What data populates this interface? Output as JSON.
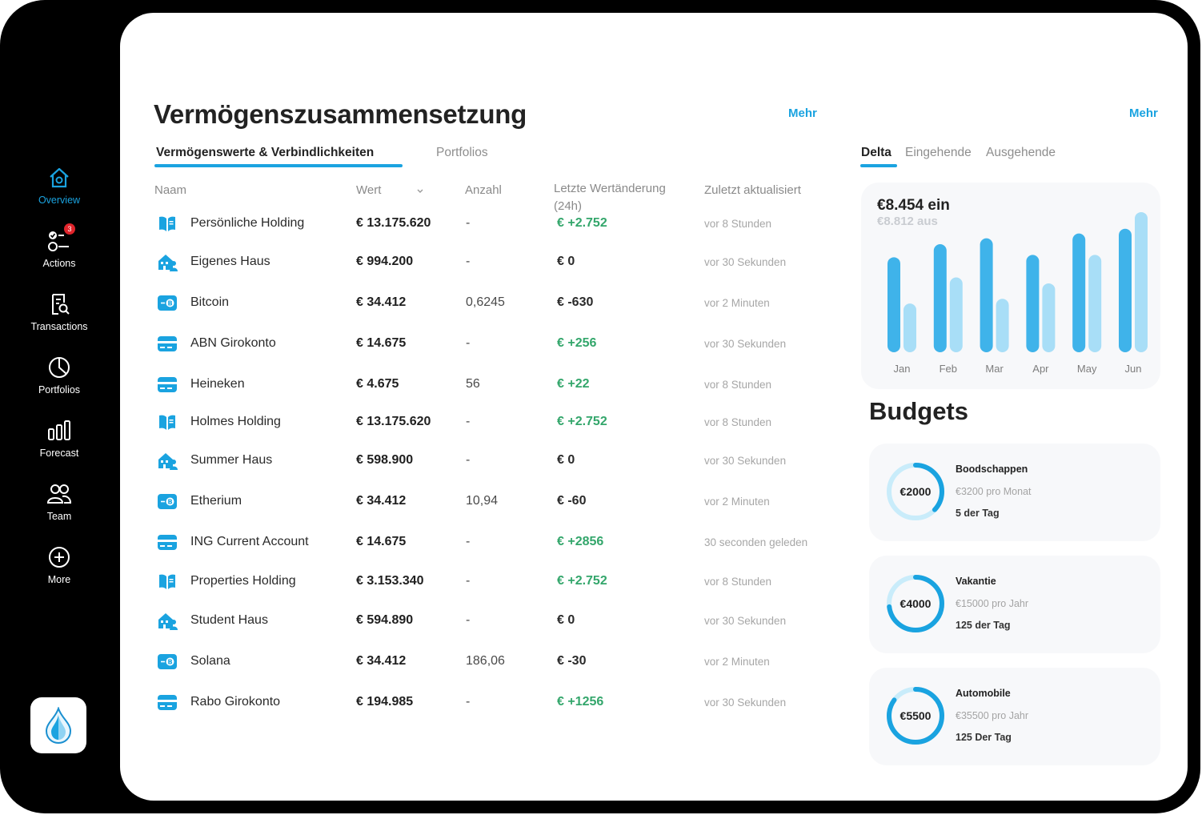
{
  "sidebar": {
    "items": [
      {
        "label": "Overview",
        "icon": "house-icon",
        "active": true
      },
      {
        "label": "Actions",
        "icon": "checklist-icon",
        "badge": "3"
      },
      {
        "label": "Transactions",
        "icon": "receipt-search-icon"
      },
      {
        "label": "Portfolios",
        "icon": "pie-chart-icon"
      },
      {
        "label": "Forecast",
        "icon": "bar-chart-icon"
      },
      {
        "label": "Team",
        "icon": "team-icon"
      },
      {
        "label": "More",
        "icon": "plus-circle-icon"
      }
    ]
  },
  "main": {
    "title": "Vermögenszusammensetzung",
    "more_label": "Mehr",
    "tabs": [
      {
        "label": "Vermögenswerte & Verbindlichkeiten",
        "active": true
      },
      {
        "label": "Portfolios",
        "active": false
      }
    ],
    "columns": {
      "name": "Naam",
      "value": "Wert",
      "count": "Anzahl",
      "change": "Letzte Wertänderung",
      "change_sub": "(24h)",
      "updated": "Zuletzt aktualisiert"
    },
    "rows": [
      {
        "icon": "book-icon",
        "name": "Persönliche Holding",
        "value": "€ 13.175.620",
        "count": "-",
        "change": "€ +2.752",
        "positive": true,
        "updated": "vor 8 Stunden"
      },
      {
        "icon": "house-person-icon",
        "name": "Eigenes Haus",
        "value": "€ 994.200",
        "count": "-",
        "change": "€ 0",
        "positive": false,
        "updated": "vor 30 Sekunden"
      },
      {
        "icon": "crypto-card-icon",
        "name": "Bitcoin",
        "value": "€ 34.412",
        "count": "0,6245",
        "change": "€ -630",
        "positive": false,
        "updated": "vor 2 Minuten"
      },
      {
        "icon": "bank-card-icon",
        "name": "ABN Girokonto",
        "value": "€ 14.675",
        "count": "-",
        "change": "€ +256",
        "positive": true,
        "updated": "vor 30 Sekunden"
      },
      {
        "icon": "bank-card-icon",
        "name": "Heineken",
        "value": "€ 4.675",
        "count": "56",
        "change": "€ +22",
        "positive": true,
        "updated": "vor 8 Stunden"
      },
      {
        "icon": "book-icon",
        "name": "Holmes Holding",
        "value": "€ 13.175.620",
        "count": "-",
        "change": "€ +2.752",
        "positive": true,
        "updated": "vor 8 Stunden"
      },
      {
        "icon": "house-person-icon",
        "name": "Summer Haus",
        "value": "€ 598.900",
        "count": "-",
        "change": "€ 0",
        "positive": false,
        "updated": "vor 30 Sekunden"
      },
      {
        "icon": "crypto-card-icon",
        "name": "Etherium",
        "value": "€ 34.412",
        "count": "10,94",
        "change": "€ -60",
        "positive": false,
        "updated": "vor 2 Minuten"
      },
      {
        "icon": "bank-card-icon",
        "name": "ING Current Account",
        "value": "€ 14.675",
        "count": "-",
        "change": "€ +2856",
        "positive": true,
        "updated": "30 seconden geleden"
      },
      {
        "icon": "book-icon",
        "name": "Properties Holding",
        "value": "€ 3.153.340",
        "count": "-",
        "change": "€ +2.752",
        "positive": true,
        "updated": "vor 8 Stunden"
      },
      {
        "icon": "house-person-icon",
        "name": "Student Haus",
        "value": "€ 594.890",
        "count": "-",
        "change": "€ 0",
        "positive": false,
        "updated": "vor 30 Sekunden"
      },
      {
        "icon": "crypto-card-icon",
        "name": "Solana",
        "value": "€ 34.412",
        "count": "186,06",
        "change": "€ -30",
        "positive": false,
        "updated": "vor 2 Minuten"
      },
      {
        "icon": "bank-card-icon",
        "name": "Rabo Girokonto",
        "value": "€ 194.985",
        "count": "-",
        "change": "€ +1256",
        "positive": true,
        "updated": "vor 30 Sekunden"
      }
    ]
  },
  "right": {
    "more_label": "Mehr",
    "tabs": [
      {
        "label": "Delta",
        "active": true
      },
      {
        "label": "Eingehende",
        "active": false
      },
      {
        "label": "Ausgehende",
        "active": false
      }
    ],
    "chart": {
      "in_label": "€8.454 ein",
      "out_label": "€8.812 aus"
    },
    "budgets_title": "Budgets",
    "budgets": [
      {
        "amount": "€2000",
        "name": "Boodschappen",
        "limit": "€3200 pro Monat",
        "days": "5 der Tag",
        "fraction": 0.63
      },
      {
        "amount": "€4000",
        "name": "Vakantie",
        "limit": "€15000 pro Jahr",
        "days": "125 der Tag",
        "fraction": 0.27
      },
      {
        "amount": "€5500",
        "name": "Automobile",
        "limit": "€35500 pro Jahr",
        "days": "125 Der Tag",
        "fraction": 0.15
      }
    ]
  },
  "colors": {
    "accent": "#1aa3e0",
    "positive": "#33a66b",
    "bar_in": "#3fb3ea",
    "bar_out": "#a8def7"
  },
  "chart_data": {
    "type": "bar",
    "categories": [
      "Jan",
      "Feb",
      "Mar",
      "Apr",
      "May",
      "Jun"
    ],
    "series": [
      {
        "values": [
          8.0,
          9.1,
          9.6,
          8.2,
          10.0,
          10.4
        ]
      },
      {
        "values": [
          4.1,
          6.3,
          4.5,
          5.8,
          8.2,
          11.8
        ]
      }
    ],
    "ylim": [
      0,
      12
    ],
    "grid": false
  }
}
